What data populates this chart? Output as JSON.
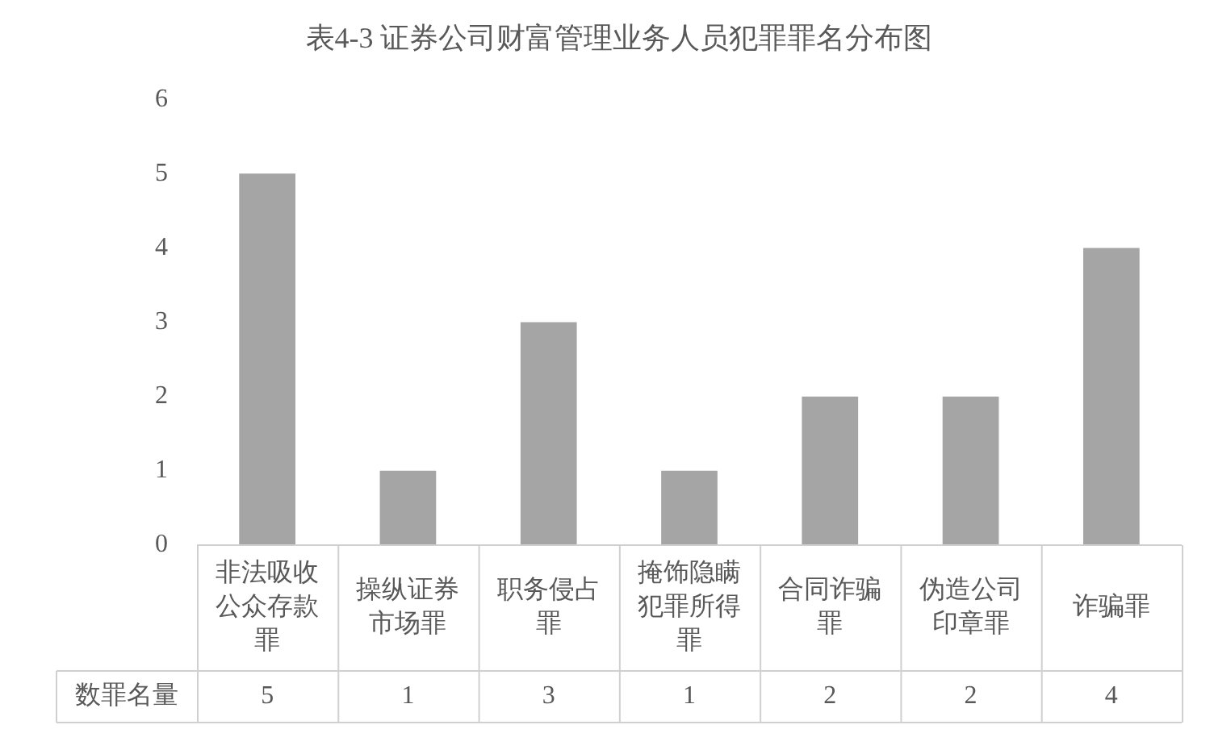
{
  "chart_data": {
    "type": "bar",
    "title": "表4-3 证券公司财富管理业务人员犯罪罪名分布图",
    "categories": [
      "非法吸收公众存款罪",
      "操纵证券市场罪",
      "职务侵占罪",
      "掩饰隐瞒犯罪所得罪",
      "合同诈骗罪",
      "伪造公司印章罪",
      "诈骗罪"
    ],
    "series": [
      {
        "name": "数罪名量",
        "color": "#a5a5a5",
        "values": [
          5,
          1,
          3,
          1,
          2,
          2,
          4
        ]
      }
    ],
    "ylim": [
      0,
      6
    ],
    "yticks": [
      0,
      1,
      2,
      3,
      4,
      5,
      6
    ],
    "grid": false,
    "legend": false,
    "data_labels": true
  }
}
